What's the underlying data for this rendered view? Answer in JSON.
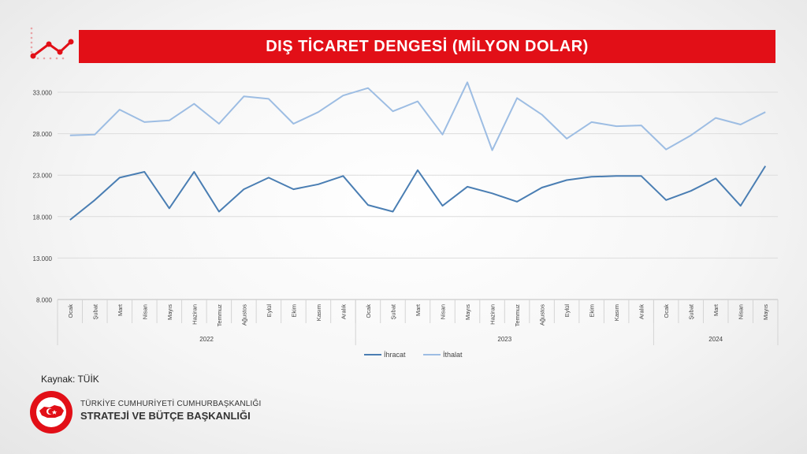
{
  "title": "DIŞ TİCARET DENGESİ (MİLYON DOLAR)",
  "source": "Kaynak: TÜİK",
  "organization": {
    "line1": "TÜRKİYE CUMHURİYETİ CUMHURBAŞKANLIĞI",
    "line2": "STRATEJİ VE BÜTÇE BAŞKANLIĞI"
  },
  "colors": {
    "title_bar": "#e20f17",
    "ihracat": "#4a7eb3",
    "ithalat": "#9dbde3"
  },
  "icons": [
    "trend-chart-icon",
    "emblem-icon"
  ],
  "chart_data": {
    "type": "line",
    "title": "",
    "xlabel": "",
    "ylabel": "",
    "ylim": [
      8000,
      35000
    ],
    "yticks": [
      8000,
      13000,
      18000,
      23000,
      28000,
      33000
    ],
    "ytick_labels": [
      "8.000",
      "13.000",
      "18.000",
      "23.000",
      "28.000",
      "33.000"
    ],
    "grid": true,
    "legend_position": "bottom",
    "categories": [
      "Ocak",
      "Şubat",
      "Mart",
      "Nisan",
      "Mayıs",
      "Haziran",
      "Temmuz",
      "Ağustos",
      "Eylül",
      "Ekim",
      "Kasım",
      "Aralık",
      "Ocak",
      "Şubat",
      "Mart",
      "Nisan",
      "Mayıs",
      "Haziran",
      "Temmuz",
      "Ağustos",
      "Eylül",
      "Ekim",
      "Kasım",
      "Aralık",
      "Ocak",
      "Şubat",
      "Mart",
      "Nisan",
      "Mayıs"
    ],
    "year_groups": [
      {
        "label": "2022",
        "count": 12
      },
      {
        "label": "2023",
        "count": 12
      },
      {
        "label": "2024",
        "count": 5
      }
    ],
    "series": [
      {
        "name": "İhracat",
        "color": "#4a7eb3",
        "values": [
          17600,
          20000,
          22700,
          23400,
          19000,
          23400,
          18600,
          21300,
          22700,
          21300,
          21900,
          22900,
          19400,
          18600,
          23600,
          19300,
          21600,
          20800,
          19800,
          21500,
          22400,
          22800,
          22900,
          22900,
          20000,
          21100,
          22600,
          19300,
          24100
        ]
      },
      {
        "name": "İthalat",
        "color": "#9dbde3",
        "values": [
          27800,
          27900,
          30900,
          29400,
          29600,
          31600,
          29200,
          32500,
          32200,
          29200,
          30600,
          32600,
          33500,
          30700,
          31900,
          27900,
          34200,
          26000,
          32300,
          30300,
          27400,
          29400,
          28900,
          29000,
          26100,
          27800,
          29900,
          29100,
          30600
        ]
      }
    ]
  }
}
